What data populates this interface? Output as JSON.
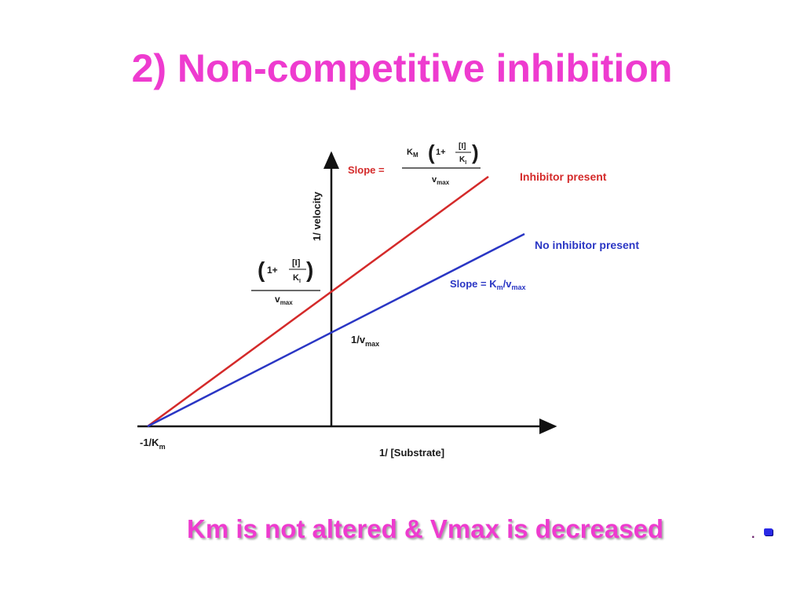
{
  "slide": {
    "title": "2) Non-competitive inhibition",
    "title_color": "#ee3bcf",
    "caption": "Km is not altered & Vmax is decreased",
    "caption_color": "#ee3bcf",
    "caption_period": "."
  },
  "diagram": {
    "x_axis_label": "1/ [Substrate]",
    "y_axis_label": "1/ velocity",
    "x_intercept": {
      "prefix": "-1/K",
      "sub": "m"
    },
    "inhibitor_line": {
      "label": "Inhibitor present",
      "color": "#d42a2a",
      "slope_prefix": "Slope =",
      "slope_km": "K",
      "slope_km_sub": "M",
      "slope_open": "1+",
      "slope_frac_num": "[I]",
      "slope_frac_den": "K",
      "slope_frac_den_sub": "I",
      "slope_den": "v",
      "slope_den_sub": "max",
      "y_int_open": "1+",
      "y_int_frac_num": "[I]",
      "y_int_frac_den": "K",
      "y_int_frac_den_sub": "I",
      "y_int_den": "v",
      "y_int_den_sub": "max"
    },
    "no_inhibitor_line": {
      "label": "No inhibitor present",
      "color": "#2a36c4",
      "slope_prefix": "Slope = K",
      "slope_sub1": "m",
      "slope_mid": "/v",
      "slope_sub2": "max",
      "y_int_prefix": "1/v",
      "y_int_sub": "max"
    },
    "axis_color": "#111111"
  }
}
